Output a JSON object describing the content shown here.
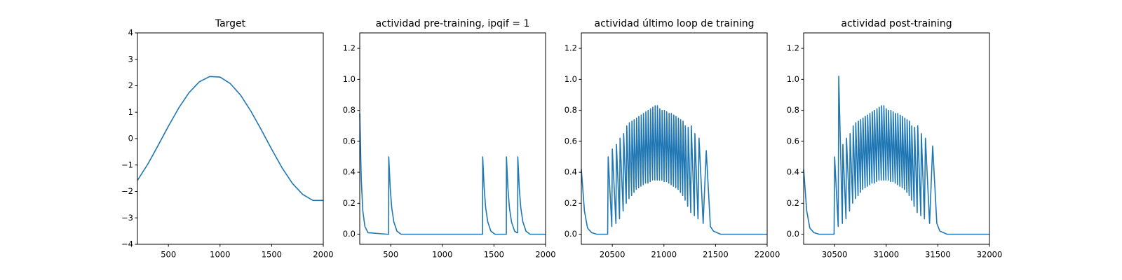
{
  "chart_data": [
    {
      "type": "line",
      "title": "Target",
      "color": "#1f77b4",
      "x": [
        200,
        300,
        400,
        500,
        600,
        700,
        800,
        900,
        1000,
        1100,
        1200,
        1300,
        1400,
        1500,
        1600,
        1700,
        1800,
        1900,
        2000
      ],
      "values": [
        -1.58,
        -0.97,
        -0.26,
        0.47,
        1.16,
        1.74,
        2.15,
        2.35,
        2.33,
        2.08,
        1.64,
        1.03,
        0.33,
        -0.4,
        -1.1,
        -1.69,
        -2.11,
        -2.34,
        -2.34
      ],
      "xlim": [
        200,
        2000
      ],
      "xticks": [
        500,
        1000,
        1500,
        2000
      ],
      "ylim": [
        -4,
        4
      ],
      "yticks": [
        {
          "value": -4,
          "label": "−4"
        },
        {
          "value": -3,
          "label": "−3"
        },
        {
          "value": -2,
          "label": "−2"
        },
        {
          "value": -1,
          "label": "−1"
        },
        0,
        1,
        2,
        3,
        4
      ]
    },
    {
      "type": "line",
      "title": "actividad pre-training, ipqif = 1",
      "color": "#1f77b4",
      "x": [
        200,
        215,
        230,
        250,
        280,
        470,
        480,
        481,
        495,
        510,
        530,
        560,
        600,
        1380,
        1390,
        1391,
        1405,
        1420,
        1440,
        1470,
        1510,
        1610,
        1620,
        1621,
        1635,
        1650,
        1670,
        1700,
        1720,
        1730,
        1731,
        1745,
        1760,
        1780,
        1810,
        1850,
        2000
      ],
      "values": [
        0.78,
        0.35,
        0.15,
        0.05,
        0.01,
        0,
        0,
        0.5,
        0.3,
        0.17,
        0.08,
        0.02,
        0,
        0,
        0,
        0.5,
        0.3,
        0.17,
        0.08,
        0.02,
        0,
        0,
        0,
        0.5,
        0.3,
        0.17,
        0.08,
        0.02,
        0.01,
        0.01,
        0.5,
        0.3,
        0.17,
        0.08,
        0.02,
        0,
        0
      ],
      "xlim": [
        200,
        2000
      ],
      "xticks": [
        500,
        1000,
        1500,
        2000
      ],
      "ylim": [
        -0.065,
        1.3
      ],
      "yticks": [
        {
          "value": 0,
          "label": "0.0"
        },
        0.2,
        0.4,
        0.6,
        0.8,
        {
          "value": 1,
          "label": "1.0"
        },
        1.2
      ]
    },
    {
      "type": "line",
      "title": "actividad último loop de training",
      "color": "#1f77b4",
      "x": [
        20200,
        20230,
        20260,
        20300,
        20350,
        20455,
        20460,
        20495,
        20500,
        20535,
        20540,
        20570,
        20575,
        20605,
        20610,
        20635,
        20640,
        20662,
        20665,
        20687,
        20690,
        20710,
        20712,
        20732,
        20735,
        20755,
        20757,
        20777,
        20780,
        20800,
        20802,
        20822,
        20825,
        20845,
        20847,
        20867,
        20870,
        20890,
        20892,
        20912,
        20915,
        20935,
        20937,
        20957,
        20960,
        20980,
        20982,
        21002,
        21005,
        21025,
        21027,
        21047,
        21050,
        21070,
        21072,
        21092,
        21095,
        21115,
        21117,
        21137,
        21140,
        21160,
        21162,
        21182,
        21185,
        21205,
        21207,
        21230,
        21235,
        21260,
        21265,
        21295,
        21300,
        21330,
        21340,
        21380,
        21410,
        21450,
        21480,
        21550,
        22000
      ],
      "values": [
        0.42,
        0.15,
        0.04,
        0.01,
        0,
        0,
        0.5,
        0.05,
        0.55,
        0.07,
        0.58,
        0.1,
        0.62,
        0.15,
        0.65,
        0.2,
        0.7,
        0.23,
        0.72,
        0.25,
        0.73,
        0.27,
        0.74,
        0.29,
        0.75,
        0.3,
        0.76,
        0.31,
        0.77,
        0.32,
        0.78,
        0.33,
        0.79,
        0.33,
        0.8,
        0.34,
        0.81,
        0.35,
        0.82,
        0.35,
        0.83,
        0.35,
        0.83,
        0.35,
        0.81,
        0.35,
        0.8,
        0.34,
        0.8,
        0.34,
        0.79,
        0.33,
        0.78,
        0.32,
        0.78,
        0.31,
        0.77,
        0.3,
        0.76,
        0.29,
        0.75,
        0.27,
        0.74,
        0.25,
        0.73,
        0.22,
        0.7,
        0.18,
        0.69,
        0.14,
        0.7,
        0.12,
        0.65,
        0.1,
        0.62,
        0.07,
        0.54,
        0.05,
        0.02,
        0,
        0
      ],
      "xlim": [
        20200,
        22000
      ],
      "xticks": [
        20500,
        21000,
        21500,
        22000
      ],
      "ylim": [
        -0.065,
        1.3
      ],
      "yticks": [
        {
          "value": 0,
          "label": "0.0"
        },
        0.2,
        0.4,
        0.6,
        0.8,
        {
          "value": 1,
          "label": "1.0"
        },
        1.2
      ]
    },
    {
      "type": "line",
      "title": "actividad post-training",
      "color": "#1f77b4",
      "x": [
        30200,
        30230,
        30260,
        30300,
        30350,
        30495,
        30500,
        30535,
        30540,
        30575,
        30580,
        30610,
        30615,
        30645,
        30650,
        30675,
        30680,
        30702,
        30705,
        30727,
        30730,
        30750,
        30752,
        30772,
        30775,
        30795,
        30797,
        30817,
        30820,
        30840,
        30842,
        30862,
        30865,
        30885,
        30887,
        30907,
        30910,
        30930,
        30932,
        30952,
        30955,
        30975,
        30977,
        30997,
        31000,
        31020,
        31022,
        31042,
        31045,
        31065,
        31067,
        31087,
        31090,
        31110,
        31112,
        31132,
        31135,
        31155,
        31157,
        31177,
        31180,
        31200,
        31202,
        31222,
        31225,
        31245,
        31247,
        31270,
        31275,
        31300,
        31305,
        31335,
        31340,
        31370,
        31380,
        31420,
        31450,
        31490,
        31520,
        31590,
        32000
      ],
      "values": [
        0.42,
        0.15,
        0.04,
        0.01,
        0,
        0,
        0.5,
        0.05,
        1.02,
        0.07,
        0.58,
        0.1,
        0.62,
        0.15,
        0.65,
        0.2,
        0.7,
        0.23,
        0.72,
        0.25,
        0.73,
        0.27,
        0.74,
        0.29,
        0.75,
        0.3,
        0.76,
        0.31,
        0.77,
        0.32,
        0.78,
        0.33,
        0.79,
        0.33,
        0.8,
        0.34,
        0.81,
        0.35,
        0.82,
        0.35,
        0.83,
        0.35,
        0.83,
        0.35,
        0.81,
        0.35,
        0.8,
        0.34,
        0.8,
        0.34,
        0.79,
        0.33,
        0.78,
        0.32,
        0.78,
        0.31,
        0.77,
        0.3,
        0.76,
        0.29,
        0.75,
        0.27,
        0.74,
        0.25,
        0.73,
        0.22,
        0.7,
        0.18,
        0.69,
        0.14,
        0.7,
        0.12,
        0.65,
        0.1,
        0.62,
        0.07,
        0.57,
        0.07,
        0.02,
        0,
        0
      ],
      "xlim": [
        30200,
        32000
      ],
      "xticks": [
        30500,
        31000,
        31500,
        32000
      ],
      "ylim": [
        -0.065,
        1.3
      ],
      "yticks": [
        {
          "value": 0,
          "label": "0.0"
        },
        0.2,
        0.4,
        0.6,
        0.8,
        {
          "value": 1,
          "label": "1.0"
        },
        1.2
      ]
    }
  ]
}
